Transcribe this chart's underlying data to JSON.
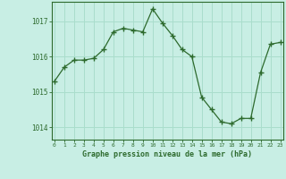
{
  "x": [
    0,
    1,
    2,
    3,
    4,
    5,
    6,
    7,
    8,
    9,
    10,
    11,
    12,
    13,
    14,
    15,
    16,
    17,
    18,
    19,
    20,
    21,
    22,
    23
  ],
  "y": [
    1015.3,
    1015.7,
    1015.9,
    1015.9,
    1015.95,
    1016.2,
    1016.7,
    1016.8,
    1016.75,
    1016.7,
    1017.35,
    1016.95,
    1016.6,
    1016.2,
    1016.0,
    1014.85,
    1014.5,
    1014.15,
    1014.1,
    1014.25,
    1014.25,
    1015.55,
    1016.35,
    1016.4
  ],
  "line_color": "#2d6a2d",
  "marker": "+",
  "marker_size": 4,
  "bg_color": "#c8eee4",
  "grid_color": "#aaddcc",
  "axis_color": "#2d6a2d",
  "tick_color": "#2d6a2d",
  "xlabel": "Graphe pression niveau de la mer (hPa)",
  "xlabel_color": "#2d6a2d",
  "yticks": [
    1014,
    1015,
    1016,
    1017
  ],
  "xticks": [
    0,
    1,
    2,
    3,
    4,
    5,
    6,
    7,
    8,
    9,
    10,
    11,
    12,
    13,
    14,
    15,
    16,
    17,
    18,
    19,
    20,
    21,
    22,
    23
  ],
  "ylim": [
    1013.65,
    1017.55
  ],
  "xlim": [
    -0.3,
    23.3
  ]
}
